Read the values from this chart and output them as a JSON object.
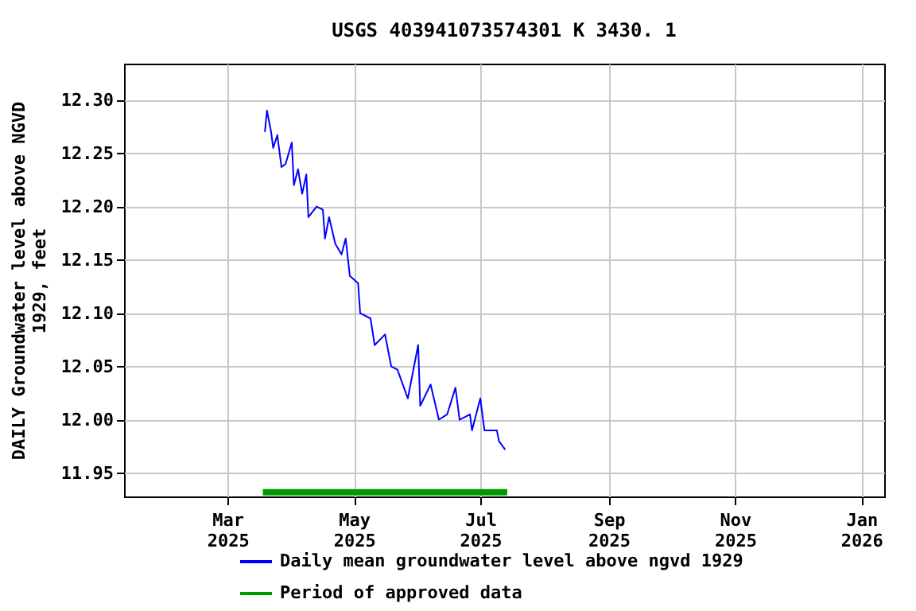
{
  "chart_data": {
    "type": "line",
    "title": "USGS 403941073574301 K  3430. 1",
    "ylabel": "DAILY Groundwater level above NGVD\n1929, feet",
    "series": [
      {
        "name": "Daily mean groundwater level above ngvd 1929",
        "color": "#0000ff",
        "x": [
          "2025-03-19",
          "2025-03-20",
          "2025-03-22",
          "2025-03-23",
          "2025-03-25",
          "2025-03-27",
          "2025-03-29",
          "2025-04-01",
          "2025-04-02",
          "2025-04-04",
          "2025-04-06",
          "2025-04-08",
          "2025-04-09",
          "2025-04-13",
          "2025-04-16",
          "2025-04-17",
          "2025-04-19",
          "2025-04-22",
          "2025-04-25",
          "2025-04-27",
          "2025-04-29",
          "2025-05-03",
          "2025-05-04",
          "2025-05-09",
          "2025-05-11",
          "2025-05-16",
          "2025-05-19",
          "2025-05-22",
          "2025-05-27",
          "2025-06-01",
          "2025-06-02",
          "2025-06-07",
          "2025-06-11",
          "2025-06-15",
          "2025-06-19",
          "2025-06-21",
          "2025-06-26",
          "2025-06-27",
          "2025-07-01",
          "2025-07-03",
          "2025-07-09",
          "2025-07-10",
          "2025-07-13"
        ],
        "values": [
          12.27,
          12.29,
          12.27,
          12.255,
          12.267,
          12.237,
          12.24,
          12.26,
          12.22,
          12.235,
          12.212,
          12.23,
          12.19,
          12.2,
          12.197,
          12.17,
          12.19,
          12.165,
          12.155,
          12.17,
          12.135,
          12.128,
          12.1,
          12.095,
          12.07,
          12.08,
          12.05,
          12.047,
          12.02,
          12.07,
          12.013,
          12.033,
          12.0,
          12.005,
          12.03,
          12.0,
          12.005,
          11.99,
          12.02,
          11.99,
          11.99,
          11.98,
          11.972
        ]
      },
      {
        "name": "Period of approved data",
        "color": "#009900",
        "x": [
          "2025-03-18",
          "2025-07-14"
        ],
        "values": [
          11.932,
          11.932
        ]
      }
    ],
    "xlim": [
      "2025-01-10",
      "2026-01-12"
    ],
    "xticks": [
      {
        "value": "2025-03-01",
        "label": "Mar\n2025"
      },
      {
        "value": "2025-05-01",
        "label": "May\n2025"
      },
      {
        "value": "2025-07-01",
        "label": "Jul\n2025"
      },
      {
        "value": "2025-09-01",
        "label": "Sep\n2025"
      },
      {
        "value": "2025-11-01",
        "label": "Nov\n2025"
      },
      {
        "value": "2026-01-01",
        "label": "Jan\n2026"
      }
    ],
    "ylim": [
      11.928,
      12.334
    ],
    "yticks": [
      {
        "value": 11.95,
        "label": "11.95"
      },
      {
        "value": 12.0,
        "label": "12.00"
      },
      {
        "value": 12.05,
        "label": "12.05"
      },
      {
        "value": 12.1,
        "label": "12.10"
      },
      {
        "value": 12.15,
        "label": "12.15"
      },
      {
        "value": 12.2,
        "label": "12.20"
      },
      {
        "value": 12.25,
        "label": "12.25"
      },
      {
        "value": 12.3,
        "label": "12.30"
      }
    ],
    "grid": true,
    "legend": "bottom",
    "marker": "none",
    "line_style": "solid"
  }
}
